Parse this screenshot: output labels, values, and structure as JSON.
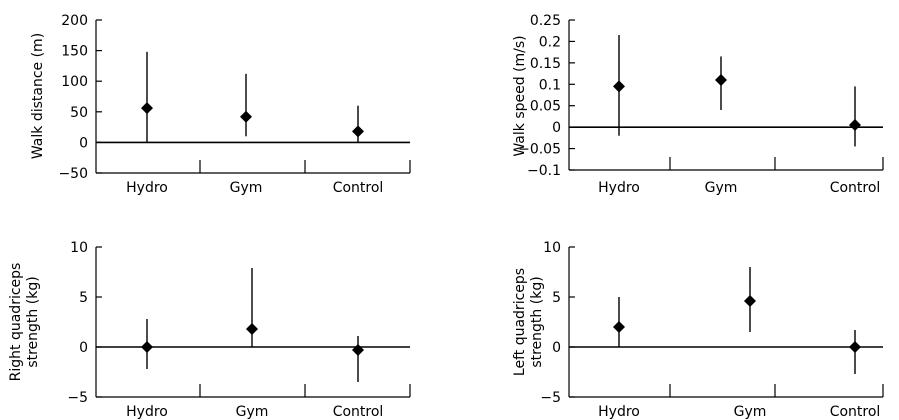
{
  "chart_data": [
    {
      "type": "scatter",
      "categories": [
        "Hydro",
        "Gym",
        "Control"
      ],
      "ylabel": "Walk distance (m)",
      "ylim": [
        -50,
        200
      ],
      "yticks": [
        200,
        150,
        100,
        50,
        0,
        -50
      ],
      "ytick_labels": [
        "200",
        "150",
        "100",
        "50",
        "0",
        "−50"
      ],
      "values": [
        56,
        42,
        18
      ],
      "ci": [
        [
          0,
          148
        ],
        [
          10,
          112
        ],
        [
          0,
          60
        ]
      ]
    },
    {
      "type": "scatter",
      "categories": [
        "Hydro",
        "Gym",
        "Control"
      ],
      "ylabel": "Walk speed (m/s)",
      "ylim": [
        -0.1,
        0.25
      ],
      "yticks": [
        0.25,
        0.2,
        0.15,
        0.1,
        0.05,
        0,
        -0.05,
        -0.1
      ],
      "ytick_labels": [
        "0.25",
        "0.2",
        "0.15",
        "0.1",
        "0.05",
        "0",
        "−0.05",
        "−0.1"
      ],
      "values": [
        0.095,
        0.11,
        0.005
      ],
      "ci": [
        [
          -0.02,
          0.215
        ],
        [
          0.04,
          0.165
        ],
        [
          -0.045,
          0.095
        ]
      ]
    },
    {
      "type": "scatter",
      "categories": [
        "Hydro",
        "Gym",
        "Control"
      ],
      "ylabel": "Right quadriceps strength (kg)",
      "ylabel_lines": [
        "Right quadriceps",
        "strength (kg)"
      ],
      "ylim": [
        -5,
        10
      ],
      "yticks": [
        10,
        5,
        0,
        -5
      ],
      "ytick_labels": [
        "10",
        "5",
        "0",
        "−5"
      ],
      "values": [
        0,
        1.8,
        -0.3
      ],
      "ci": [
        [
          -2.2,
          2.8
        ],
        [
          0,
          7.9
        ],
        [
          -3.5,
          1.1
        ]
      ]
    },
    {
      "type": "scatter",
      "categories": [
        "Hydro",
        "Gym",
        "Control"
      ],
      "ylabel": "Left quadriceps strength (kg)",
      "ylabel_lines": [
        "Left quadriceps",
        "strength (kg)"
      ],
      "ylim": [
        -5,
        10
      ],
      "yticks": [
        10,
        5,
        0,
        -5
      ],
      "ytick_labels": [
        "10",
        "5",
        "0",
        "−5"
      ],
      "values": [
        2,
        4.6,
        0
      ],
      "ci": [
        [
          0,
          5
        ],
        [
          1.5,
          8
        ],
        [
          -2.7,
          1.7
        ]
      ]
    }
  ]
}
